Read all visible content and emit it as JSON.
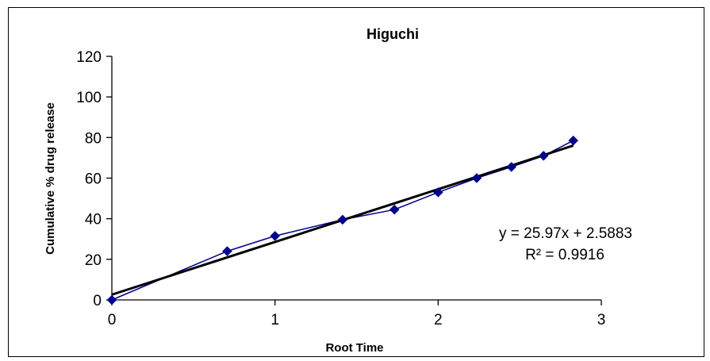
{
  "chart_data": {
    "type": "scatter",
    "title": "Higuchi",
    "xlabel": "Root Time",
    "ylabel": "Cumulative % drug release",
    "xlim": [
      0,
      3
    ],
    "ylim": [
      0,
      120
    ],
    "x_ticks": [
      "0",
      "1",
      "2",
      "3"
    ],
    "y_ticks": [
      "0",
      "20",
      "40",
      "60",
      "80",
      "100",
      "120"
    ],
    "grid": false,
    "legend": "none",
    "series": [
      {
        "points": [
          {
            "x": 0,
            "y": 0
          },
          {
            "x": 0.707,
            "y": 24
          },
          {
            "x": 1.0,
            "y": 31.5
          },
          {
            "x": 1.414,
            "y": 39.5
          },
          {
            "x": 1.732,
            "y": 44.5
          },
          {
            "x": 2.0,
            "y": 53
          },
          {
            "x": 2.236,
            "y": 60
          },
          {
            "x": 2.449,
            "y": 65.5
          },
          {
            "x": 2.646,
            "y": 71
          },
          {
            "x": 2.828,
            "y": 78.5
          }
        ],
        "color": "#00008B",
        "marker": "diamond",
        "line": "connected"
      }
    ],
    "trendline": {
      "type": "linear",
      "slope": 25.97,
      "intercept": 2.5883,
      "x_range": [
        0,
        2.828
      ],
      "color": "#000000",
      "equation_label": "y = 25.97x + 2.5883",
      "r2_label": "R² = 0.9916"
    }
  }
}
